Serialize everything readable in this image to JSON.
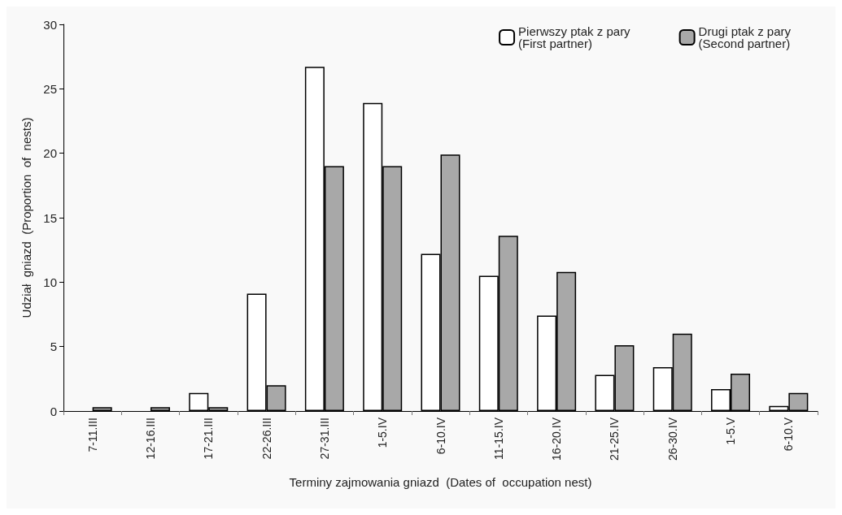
{
  "chart_data": {
    "type": "bar",
    "xlabel": "Terminy zajmowania gniazd  (Dates of  occupation nest)",
    "ylabel": "Udział  gniazd  (Proportion  of  nests)",
    "categories": [
      "7-11.III",
      "12-16.III",
      "17-21.III",
      "22-26.III",
      "27-31.III",
      "1-5.IV",
      "6-10.IV",
      "11-15.IV",
      "16-20.IV",
      "21-25.IV",
      "26-30.IV",
      "1-5.V",
      "6-10.V"
    ],
    "series": [
      {
        "name": "Pierwszy ptak z pary\n(First partner)",
        "color": "#ffffff",
        "values": [
          null,
          null,
          1.4,
          9.1,
          26.7,
          23.9,
          12.2,
          10.5,
          7.4,
          2.8,
          3.4,
          1.7,
          0.4
        ]
      },
      {
        "name": "Drugi ptak z pary\n(Second partner)",
        "color": "#a8a8a8",
        "values": [
          0.3,
          0.3,
          0.3,
          2.0,
          19.0,
          19.0,
          19.9,
          13.6,
          10.8,
          5.1,
          6.0,
          2.9,
          1.4
        ]
      }
    ],
    "ylim": [
      0,
      30
    ],
    "yticks": [
      0,
      5,
      10,
      15,
      20,
      25,
      30
    ],
    "grid": false,
    "legend": "top right"
  }
}
